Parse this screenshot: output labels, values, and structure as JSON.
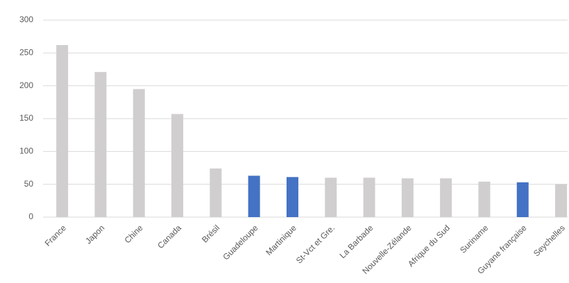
{
  "chart_data": {
    "type": "bar",
    "categories": [
      "France",
      "Japon",
      "Chine",
      "Canada",
      "Brésil",
      "Guadeloupe",
      "Martinique",
      "St-Vct et Gre.",
      "La Barbade",
      "Nouvelle-Zélande",
      "Afrique du Sud",
      "Suriname",
      "Guyane française",
      "Seychelles"
    ],
    "values": [
      262,
      221,
      195,
      157,
      74,
      63,
      61,
      60,
      60,
      59,
      59,
      54,
      53,
      50
    ],
    "colors": [
      "#d0cece",
      "#d0cece",
      "#d0cece",
      "#d0cece",
      "#d0cece",
      "#4472c4",
      "#4472c4",
      "#d0cece",
      "#d0cece",
      "#d0cece",
      "#d0cece",
      "#d0cece",
      "#4472c4",
      "#d0cece"
    ],
    "ylim": [
      0,
      300
    ],
    "yticks": [
      0,
      50,
      100,
      150,
      200,
      250,
      300
    ],
    "grid": true
  }
}
